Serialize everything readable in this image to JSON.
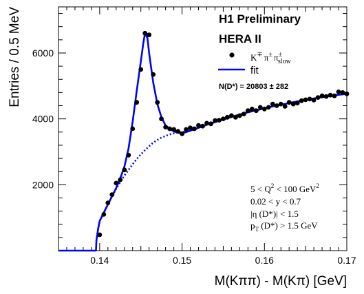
{
  "chart_data": {
    "type": "scatter",
    "title": "H1 Preliminary",
    "subtitle": "HERA II",
    "xlabel": "M(Kππ) - M(Kπ) [GeV]",
    "ylabel": "Entries / 0.5 MeV",
    "xlim": [
      0.135,
      0.17
    ],
    "ylim": [
      0,
      7400
    ],
    "x_ticks": [
      0.14,
      0.15,
      0.16,
      0.17
    ],
    "x_tick_labels": [
      "0.14",
      "0.15",
      "0.16",
      "0.17"
    ],
    "y_ticks": [
      2000,
      4000,
      6000
    ],
    "y_tick_labels": [
      "2000",
      "4000",
      "6000"
    ],
    "grid": false,
    "legend_placement": "top-right",
    "colors": {
      "data": "#000000",
      "fit": "#0000ff"
    },
    "legend": {
      "data_label_main": "K",
      "data_label_main_sup": "∓",
      "data_label_pi1": "π",
      "data_label_pi1_sup": "±",
      "data_label_pi2": "π",
      "data_label_pi2_sup": "±",
      "data_label_pi2_sub": "slow",
      "fit_label": "fit",
      "n_label": "N(D*) =  20803 ± 282"
    },
    "cuts": {
      "q2_pre": "5 < Q",
      "q2_sup": "2",
      "q2_post": " < 100 GeV",
      "q2_unit_sup": "2",
      "y_cut": "0.02 < y < 0.7",
      "eta_cut": "|η (D*)| < 1.5",
      "pt_p": "p",
      "pt_sub": "T",
      "pt_post": " (D*) > 1.5 GeV"
    },
    "series": [
      {
        "name": "data",
        "x": [
          0.14,
          0.1405,
          0.141,
          0.1415,
          0.142,
          0.1425,
          0.143,
          0.1435,
          0.144,
          0.1445,
          0.145,
          0.1455,
          0.146,
          0.1465,
          0.147,
          0.1475,
          0.148,
          0.1485,
          0.149,
          0.1495,
          0.15,
          0.1505,
          0.151,
          0.1515,
          0.152,
          0.1525,
          0.153,
          0.1535,
          0.154,
          0.1545,
          0.155,
          0.1555,
          0.156,
          0.1565,
          0.157,
          0.1575,
          0.158,
          0.1585,
          0.159,
          0.1595,
          0.16,
          0.1605,
          0.161,
          0.1615,
          0.162,
          0.1625,
          0.163,
          0.1635,
          0.164,
          0.1645,
          0.165,
          0.1655,
          0.166,
          0.1665,
          0.167,
          0.1675,
          0.168,
          0.1685,
          0.169,
          0.1695,
          0.17
        ],
        "y": [
          480,
          1100,
          1450,
          1700,
          2050,
          2150,
          2450,
          2900,
          3700,
          4500,
          5500,
          6600,
          6550,
          5350,
          4500,
          4000,
          3750,
          3700,
          3680,
          3620,
          3550,
          3680,
          3730,
          3700,
          3800,
          3780,
          3870,
          3850,
          3950,
          3960,
          4000,
          4050,
          4100,
          4050,
          4100,
          4150,
          4250,
          4300,
          4250,
          4350,
          4300,
          4350,
          4450,
          4400,
          4450,
          4380,
          4500,
          4450,
          4480,
          4550,
          4580,
          4600,
          4570,
          4650,
          4700,
          4680,
          4720,
          4700,
          4820,
          4800,
          4760
        ]
      },
      {
        "name": "fit",
        "x": [
          0.135,
          0.13955,
          0.1396,
          0.1398,
          0.14,
          0.1405,
          0.141,
          0.1415,
          0.142,
          0.1425,
          0.143,
          0.1435,
          0.144,
          0.1445,
          0.145,
          0.1453,
          0.1455,
          0.1458,
          0.146,
          0.1465,
          0.147,
          0.1475,
          0.148,
          0.1485,
          0.149,
          0.1495,
          0.15,
          0.1505,
          0.151,
          0.152,
          0.153,
          0.154,
          0.155,
          0.156,
          0.157,
          0.158,
          0.159,
          0.16,
          0.161,
          0.162,
          0.163,
          0.164,
          0.165,
          0.166,
          0.167,
          0.168,
          0.169,
          0.17
        ],
        "y": [
          0,
          0,
          300,
          650,
          900,
          1150,
          1400,
          1650,
          1900,
          2200,
          2550,
          3100,
          3900,
          4850,
          5750,
          6300,
          6600,
          6450,
          6000,
          5100,
          4450,
          4050,
          3800,
          3700,
          3620,
          3580,
          3560,
          3600,
          3640,
          3730,
          3820,
          3900,
          3980,
          4060,
          4130,
          4200,
          4260,
          4320,
          4380,
          4430,
          4480,
          4530,
          4570,
          4620,
          4660,
          4700,
          4730,
          4760
        ]
      },
      {
        "name": "background",
        "x": [
          0.1396,
          0.1398,
          0.14,
          0.1405,
          0.141,
          0.1415,
          0.142,
          0.1425,
          0.143,
          0.1435,
          0.144,
          0.1445,
          0.145,
          0.1455,
          0.146,
          0.1465,
          0.147,
          0.1475,
          0.148,
          0.1485,
          0.149,
          0.1495,
          0.15,
          0.1505,
          0.151
        ],
        "y": [
          300,
          650,
          900,
          1150,
          1400,
          1650,
          1880,
          2080,
          2280,
          2450,
          2620,
          2780,
          2920,
          3050,
          3170,
          3280,
          3360,
          3430,
          3480,
          3530,
          3560,
          3580,
          3600,
          3620,
          3640
        ]
      }
    ]
  }
}
